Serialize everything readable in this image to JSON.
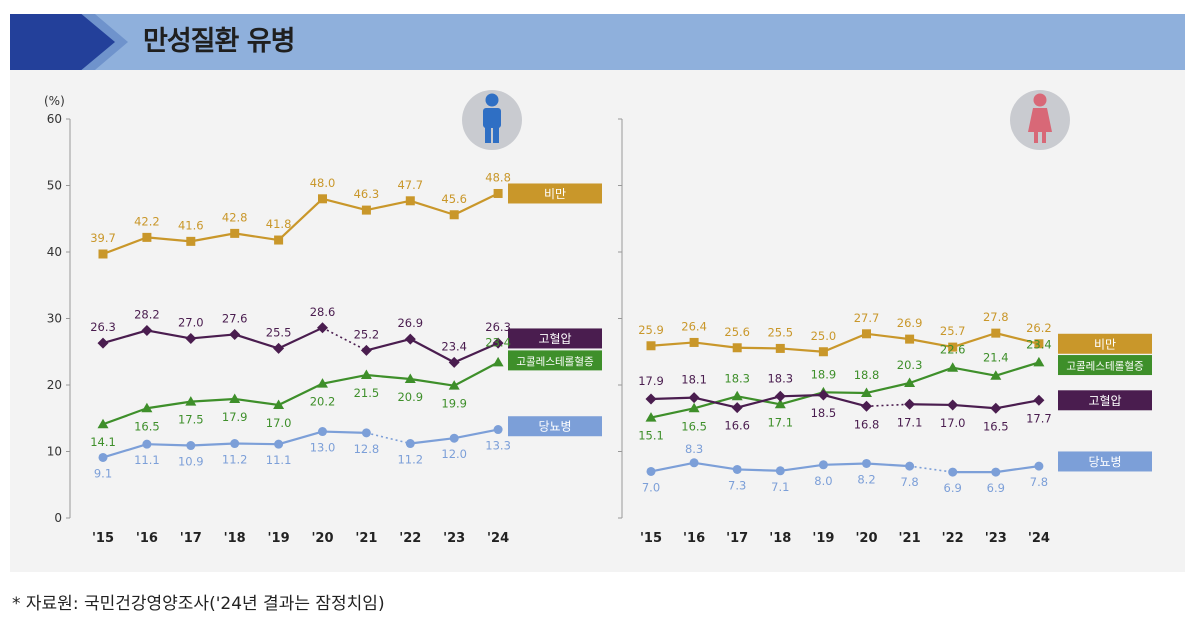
{
  "title": "만성질환 유병",
  "source": "* 자료원: 국민건강영양조사('24년 결과는 잠정치임)",
  "y_unit": "(%)",
  "colors": {
    "obesity": "#c9972a",
    "hypertension": "#4a1d4f",
    "hypercholesterolemia": "#3e8f2a",
    "diabetes": "#7c9fd8",
    "male_icon": "#2f6fc4",
    "female_icon": "#d86877"
  },
  "chart_data": [
    {
      "type": "line",
      "panel": "male",
      "icon": "male-person-icon",
      "x": [
        "'15",
        "'16",
        "'17",
        "'18",
        "'19",
        "'20",
        "'21",
        "'22",
        "'23",
        "'24"
      ],
      "ylim": [
        0,
        60
      ],
      "yticks": [
        0,
        10,
        20,
        30,
        40,
        50,
        60
      ],
      "series": [
        {
          "name": "비만",
          "key": "obesity",
          "values": [
            39.7,
            42.2,
            41.6,
            42.8,
            41.8,
            48.0,
            46.3,
            47.7,
            45.6,
            48.8
          ],
          "labels": [
            "39.7",
            "42.2",
            "41.6",
            "42.8",
            "41.8",
            "48.0",
            "46.3",
            "47.7",
            "45.6",
            "48.8"
          ],
          "label_pos": "above",
          "dotted_segment": null
        },
        {
          "name": "고혈압",
          "key": "hypertension",
          "values": [
            26.3,
            28.2,
            27.0,
            27.6,
            25.5,
            28.6,
            25.2,
            26.9,
            23.4,
            26.3
          ],
          "labels": [
            "26.3",
            "28.2",
            "27.0",
            "27.6",
            "25.5",
            "28.6",
            "25.2",
            "26.9",
            "23.4",
            "26.3"
          ],
          "label_pos": "above",
          "dotted_segment": 5
        },
        {
          "name": "고콜레스테롤혈증",
          "key": "hypercholesterolemia",
          "values": [
            14.1,
            16.5,
            17.5,
            17.9,
            17.0,
            20.2,
            21.5,
            20.9,
            19.9,
            23.4
          ],
          "labels": [
            "14.1",
            "16.5",
            "17.5",
            "17.9",
            "17.0",
            "20.2",
            "21.5",
            "20.9",
            "19.9",
            "23.4"
          ],
          "label_pos": "below",
          "dotted_segment": null
        },
        {
          "name": "당뇨병",
          "key": "diabetes",
          "values": [
            9.1,
            11.1,
            10.9,
            11.2,
            11.1,
            13.0,
            12.8,
            11.2,
            12.0,
            13.3
          ],
          "labels": [
            "9.1",
            "11.1",
            "10.9",
            "11.2",
            "11.1",
            "13.0",
            "12.8",
            "11.2",
            "12.0",
            "13.3"
          ],
          "label_pos": "below",
          "dotted_segment": 6
        }
      ]
    },
    {
      "type": "line",
      "panel": "female",
      "icon": "female-person-icon",
      "x": [
        "'15",
        "'16",
        "'17",
        "'18",
        "'19",
        "'20",
        "'21",
        "'22",
        "'23",
        "'24"
      ],
      "ylim": [
        0,
        60
      ],
      "series": [
        {
          "name": "비만",
          "key": "obesity",
          "values": [
            25.9,
            26.4,
            25.6,
            25.5,
            25.0,
            27.7,
            26.9,
            25.7,
            27.8,
            26.2
          ],
          "labels": [
            "25.9",
            "26.4",
            "25.6",
            "25.5",
            "25.0",
            "27.7",
            "26.9",
            "25.7",
            "27.8",
            "26.2"
          ],
          "label_pos": "above",
          "dotted_segment": null
        },
        {
          "name": "고콜레스테롤혈증",
          "key": "hypercholesterolemia",
          "values": [
            15.1,
            16.5,
            18.3,
            17.1,
            18.9,
            18.8,
            20.3,
            22.6,
            21.4,
            23.4
          ],
          "labels": [
            "15.1",
            "16.5",
            "18.3",
            "17.1",
            "18.9",
            "18.8",
            "20.3",
            "22.6",
            "21.4",
            "23.4"
          ],
          "label_pos": "mixed",
          "dotted_segment": null
        },
        {
          "name": "고혈압",
          "key": "hypertension",
          "values": [
            17.9,
            18.1,
            16.6,
            18.3,
            18.5,
            16.8,
            17.1,
            17.0,
            16.5,
            17.7
          ],
          "labels": [
            "17.9",
            "18.1",
            "16.6",
            "18.3",
            "18.5",
            "16.8",
            "17.1",
            "17.0",
            "16.5",
            "17.7"
          ],
          "label_pos": "mixed",
          "dotted_segment": 5
        },
        {
          "name": "당뇨병",
          "key": "diabetes",
          "values": [
            7.0,
            8.3,
            7.3,
            7.1,
            8.0,
            8.2,
            7.8,
            6.9,
            6.9,
            7.8
          ],
          "labels": [
            "7.0",
            "8.3",
            "7.3",
            "7.1",
            "8.0",
            "8.2",
            "7.8",
            "6.9",
            "6.9",
            "7.8"
          ],
          "label_pos": "below",
          "dotted_segment": 6
        }
      ]
    }
  ]
}
